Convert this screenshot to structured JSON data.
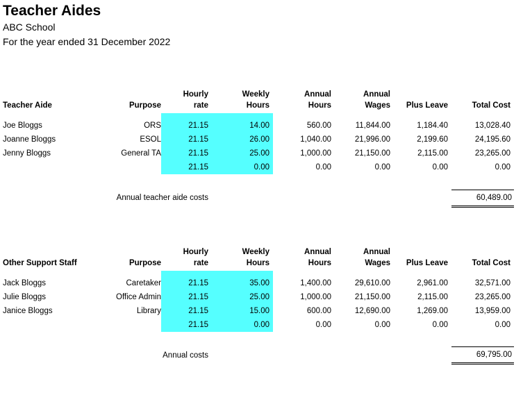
{
  "page": {
    "title": "Teacher Aides",
    "subtitle": "ABC School",
    "period": "For the year ended 31 December 2022"
  },
  "colors": {
    "input_highlight": "#55FFFF",
    "text": "#000000",
    "background": "#FFFFFF"
  },
  "teacher_aides_table": {
    "headers": {
      "name": "Teacher Aide",
      "purpose": "Purpose",
      "hourly_rate": "Hourly\nrate",
      "weekly_hours": "Weekly\nHours",
      "annual_hours": "Annual\nHours",
      "annual_wages": "Annual\nWages",
      "plus_leave": "Plus Leave",
      "total_cost": "Total Cost"
    },
    "rows": [
      {
        "name": "Joe Bloggs",
        "purpose": "ORS",
        "hourly_rate": "21.15",
        "weekly_hours": "14.00",
        "annual_hours": "560.00",
        "annual_wages": "11,844.00",
        "plus_leave": "1,184.40",
        "total_cost": "13,028.40"
      },
      {
        "name": "Joanne Bloggs",
        "purpose": "ESOL",
        "hourly_rate": "21.15",
        "weekly_hours": "26.00",
        "annual_hours": "1,040.00",
        "annual_wages": "21,996.00",
        "plus_leave": "2,199.60",
        "total_cost": "24,195.60"
      },
      {
        "name": "Jenny Bloggs",
        "purpose": "General TA",
        "hourly_rate": "21.15",
        "weekly_hours": "25.00",
        "annual_hours": "1,000.00",
        "annual_wages": "21,150.00",
        "plus_leave": "2,115.00",
        "total_cost": "23,265.00"
      },
      {
        "name": "",
        "purpose": "",
        "hourly_rate": "21.15",
        "weekly_hours": "0.00",
        "annual_hours": "0.00",
        "annual_wages": "0.00",
        "plus_leave": "0.00",
        "total_cost": "0.00"
      }
    ],
    "total_label": "Annual teacher aide costs",
    "total_value": "60,489.00"
  },
  "support_staff_table": {
    "headers": {
      "name": "Other Support Staff",
      "purpose": "Purpose",
      "hourly_rate": "Hourly\nrate",
      "weekly_hours": "Weekly\nHours",
      "annual_hours": "Annual\nHours",
      "annual_wages": "Annual\nWages",
      "plus_leave": "Plus Leave",
      "total_cost": "Total Cost"
    },
    "rows": [
      {
        "name": "Jack Bloggs",
        "purpose": "Caretaker",
        "hourly_rate": "21.15",
        "weekly_hours": "35.00",
        "annual_hours": "1,400.00",
        "annual_wages": "29,610.00",
        "plus_leave": "2,961.00",
        "total_cost": "32,571.00"
      },
      {
        "name": "Julie Bloggs",
        "purpose": "Office Admin",
        "hourly_rate": "21.15",
        "weekly_hours": "25.00",
        "annual_hours": "1,000.00",
        "annual_wages": "21,150.00",
        "plus_leave": "2,115.00",
        "total_cost": "23,265.00"
      },
      {
        "name": "Janice Bloggs",
        "purpose": "Library",
        "hourly_rate": "21.15",
        "weekly_hours": "15.00",
        "annual_hours": "600.00",
        "annual_wages": "12,690.00",
        "plus_leave": "1,269.00",
        "total_cost": "13,959.00"
      },
      {
        "name": "",
        "purpose": "",
        "hourly_rate": "21.15",
        "weekly_hours": "0.00",
        "annual_hours": "0.00",
        "annual_wages": "0.00",
        "plus_leave": "0.00",
        "total_cost": "0.00"
      }
    ],
    "total_label": "Annual costs",
    "total_value": "69,795.00"
  }
}
